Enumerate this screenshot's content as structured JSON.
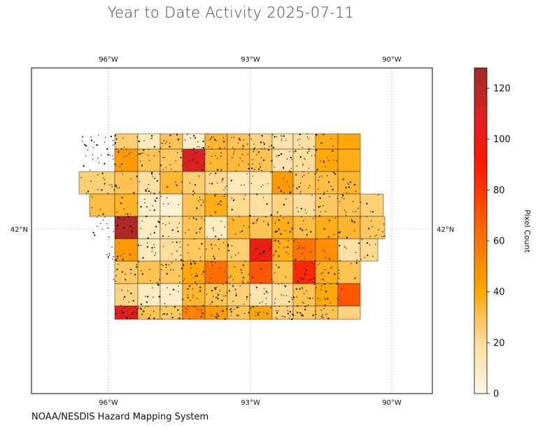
{
  "title": "Year to Date Activity 2025-07-11",
  "credit": "NOAA/NESDIS Hazard Mapping System",
  "map": {
    "region": "Iowa counties",
    "lon_ticks_top": [
      "96°W",
      "93°W",
      "90°W"
    ],
    "lon_ticks_bottom": [
      "96°W",
      "93°W",
      "90°W"
    ],
    "lat_ticks_left": [
      "42°N"
    ],
    "lat_ticks_right": [
      "42°N"
    ],
    "gridlines": true,
    "fire_points_shown": true
  },
  "colorbar": {
    "label": "Pixel Count",
    "range": [
      0,
      128
    ],
    "ticks": [
      "0",
      "20",
      "40",
      "60",
      "80",
      "100",
      "120"
    ],
    "tick_values": [
      0,
      20,
      40,
      60,
      80,
      100,
      120
    ],
    "colors": [
      "#fff8e6",
      "#ffdd99",
      "#ffa500",
      "#ff6a00",
      "#ff1a00",
      "#dc2020",
      "#a52a2a"
    ]
  },
  "counties": {
    "rows": [
      [
        null,
        26,
        12,
        30,
        8,
        35,
        30,
        24,
        15,
        18,
        38,
        40,
        null
      ],
      [
        null,
        45,
        30,
        28,
        110,
        34,
        33,
        30,
        16,
        20,
        40,
        38,
        28
      ],
      [
        25,
        30,
        18,
        34,
        26,
        22,
        12,
        14,
        45,
        28,
        32,
        35,
        30
      ],
      [
        32,
        36,
        8,
        6,
        30,
        38,
        22,
        18,
        24,
        20,
        28,
        30,
        25
      ],
      [
        null,
        125,
        10,
        16,
        30,
        10,
        35,
        30,
        38,
        32,
        38,
        35,
        28
      ],
      [
        null,
        45,
        12,
        20,
        28,
        30,
        26,
        100,
        38,
        60,
        50,
        18,
        22
      ],
      [
        null,
        28,
        30,
        28,
        40,
        62,
        35,
        70,
        30,
        85,
        38,
        30,
        null
      ],
      [
        null,
        24,
        10,
        8,
        35,
        30,
        25,
        15,
        18,
        30,
        40,
        70,
        null
      ],
      [
        null,
        110,
        30,
        28,
        55,
        45,
        30,
        40,
        25,
        28,
        30,
        24,
        null
      ]
    ]
  }
}
